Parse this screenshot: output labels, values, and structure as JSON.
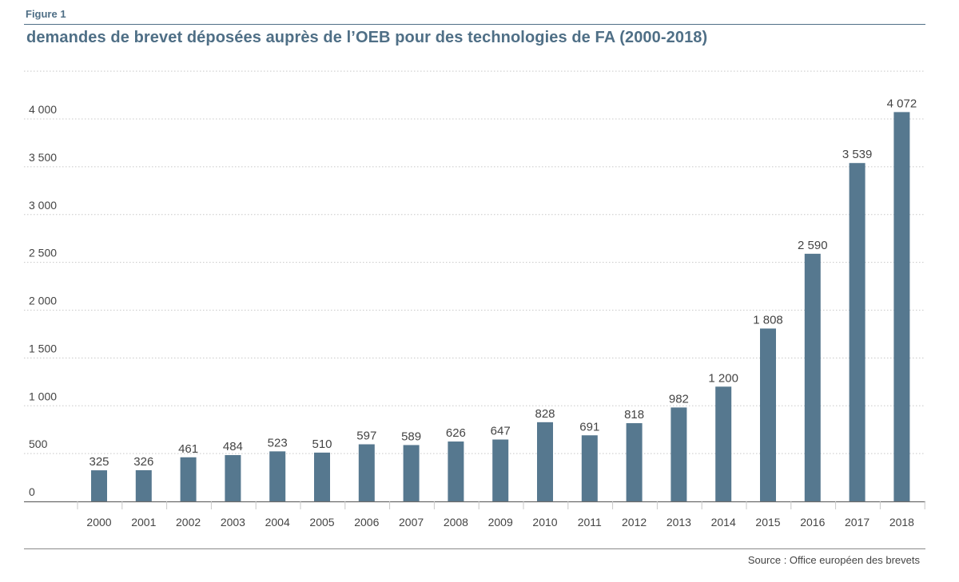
{
  "figure_label": "Figure 1",
  "title": "demandes de brevet déposées auprès de l’OEB pour des technologies de FA (2000-2018)",
  "source": "Source : Office européen des brevets",
  "colors": {
    "bar": "#56788f",
    "title": "#4f6f86",
    "grid": "#c8c8c8",
    "axis": "#6b6b6b",
    "text": "#444444"
  },
  "chart_data": {
    "type": "bar",
    "title": "demandes de brevet déposées auprès de l’OEB pour des technologies de FA (2000-2018)",
    "xlabel": "",
    "ylabel": "",
    "ylim": [
      0,
      4500
    ],
    "grid": true,
    "yticks": [
      0,
      500,
      1000,
      1500,
      2000,
      2500,
      3000,
      3500,
      4000
    ],
    "ytick_labels": [
      "0",
      "500",
      "1 000",
      "1 500",
      "2 000",
      "2 500",
      "3 000",
      "3 500",
      "4 000"
    ],
    "categories": [
      "2000",
      "2001",
      "2002",
      "2003",
      "2004",
      "2005",
      "2006",
      "2007",
      "2008",
      "2009",
      "2010",
      "2011",
      "2012",
      "2013",
      "2014",
      "2015",
      "2016",
      "2017",
      "2018"
    ],
    "values": [
      325,
      326,
      461,
      484,
      523,
      510,
      597,
      589,
      626,
      647,
      828,
      691,
      818,
      982,
      1200,
      1808,
      2590,
      3539,
      4072
    ],
    "value_labels": [
      "325",
      "326",
      "461",
      "484",
      "523",
      "510",
      "597",
      "589",
      "626",
      "647",
      "828",
      "691",
      "818",
      "982",
      "1 200",
      "1 808",
      "2 590",
      "3 539",
      "4 072"
    ]
  }
}
